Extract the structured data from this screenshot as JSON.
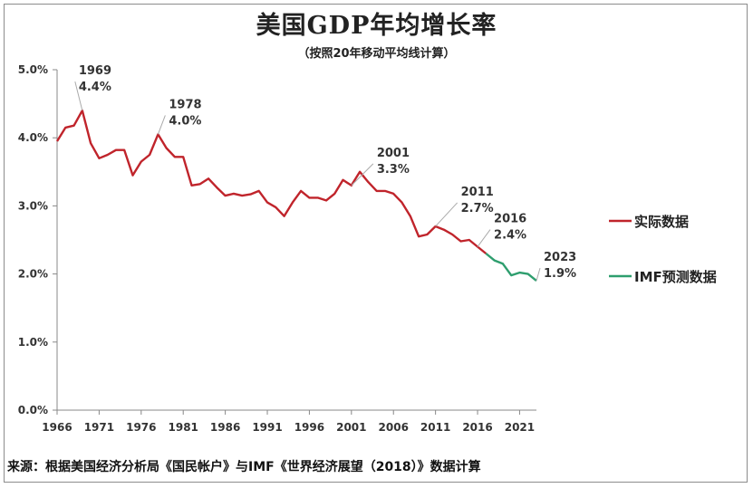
{
  "chart_data": {
    "type": "line",
    "title": "美国GDP年均增长率",
    "subtitle": "（按照20年移动平均线计算）",
    "source": "来源：根据美国经济分析局《国民帐户》与IMF《世界经济展望（2018）》数据计算",
    "ylim": [
      0,
      5
    ],
    "y_ticks": [
      "0.0%",
      "1.0%",
      "2.0%",
      "3.0%",
      "4.0%",
      "5.0%"
    ],
    "x_ticks": [
      "1966",
      "1971",
      "1976",
      "1981",
      "1986",
      "1991",
      "1996",
      "2001",
      "2006",
      "2011",
      "2016",
      "2021"
    ],
    "grid": false,
    "legend_position": "right",
    "series": [
      {
        "name": "实际数据",
        "color": "#c0242b",
        "x": [
          1966,
          1967,
          1968,
          1969,
          1970,
          1971,
          1972,
          1973,
          1974,
          1975,
          1976,
          1977,
          1978,
          1979,
          1980,
          1981,
          1982,
          1983,
          1984,
          1985,
          1986,
          1987,
          1988,
          1989,
          1990,
          1991,
          1992,
          1993,
          1994,
          1995,
          1996,
          1997,
          1998,
          1999,
          2000,
          2001,
          2002,
          2003,
          2004,
          2005,
          2006,
          2007,
          2008,
          2009,
          2010,
          2011,
          2012,
          2013,
          2014,
          2015,
          2016,
          2017
        ],
        "y": [
          3.95,
          4.15,
          4.18,
          4.4,
          3.92,
          3.7,
          3.75,
          3.82,
          3.82,
          3.45,
          3.65,
          3.75,
          4.05,
          3.85,
          3.72,
          3.72,
          3.3,
          3.32,
          3.4,
          3.27,
          3.15,
          3.18,
          3.15,
          3.17,
          3.22,
          3.05,
          2.98,
          2.85,
          3.05,
          3.22,
          3.12,
          3.12,
          3.08,
          3.18,
          3.38,
          3.3,
          3.5,
          3.35,
          3.22,
          3.22,
          3.18,
          3.05,
          2.85,
          2.55,
          2.58,
          2.7,
          2.65,
          2.58,
          2.48,
          2.5,
          2.4,
          2.3
        ]
      },
      {
        "name": "IMF预测数据",
        "color": "#2e9e6e",
        "x": [
          2017,
          2018,
          2019,
          2020,
          2021,
          2022,
          2023
        ],
        "y": [
          2.3,
          2.2,
          2.15,
          1.98,
          2.02,
          2.0,
          1.9
        ]
      }
    ],
    "annotations": [
      {
        "year": "1969",
        "value": "4.4%"
      },
      {
        "year": "1978",
        "value": "4.0%"
      },
      {
        "year": "2001",
        "value": "3.3%"
      },
      {
        "year": "2011",
        "value": "2.7%"
      },
      {
        "year": "2016",
        "value": "2.4%"
      },
      {
        "year": "2023",
        "value": "1.9%"
      }
    ]
  }
}
